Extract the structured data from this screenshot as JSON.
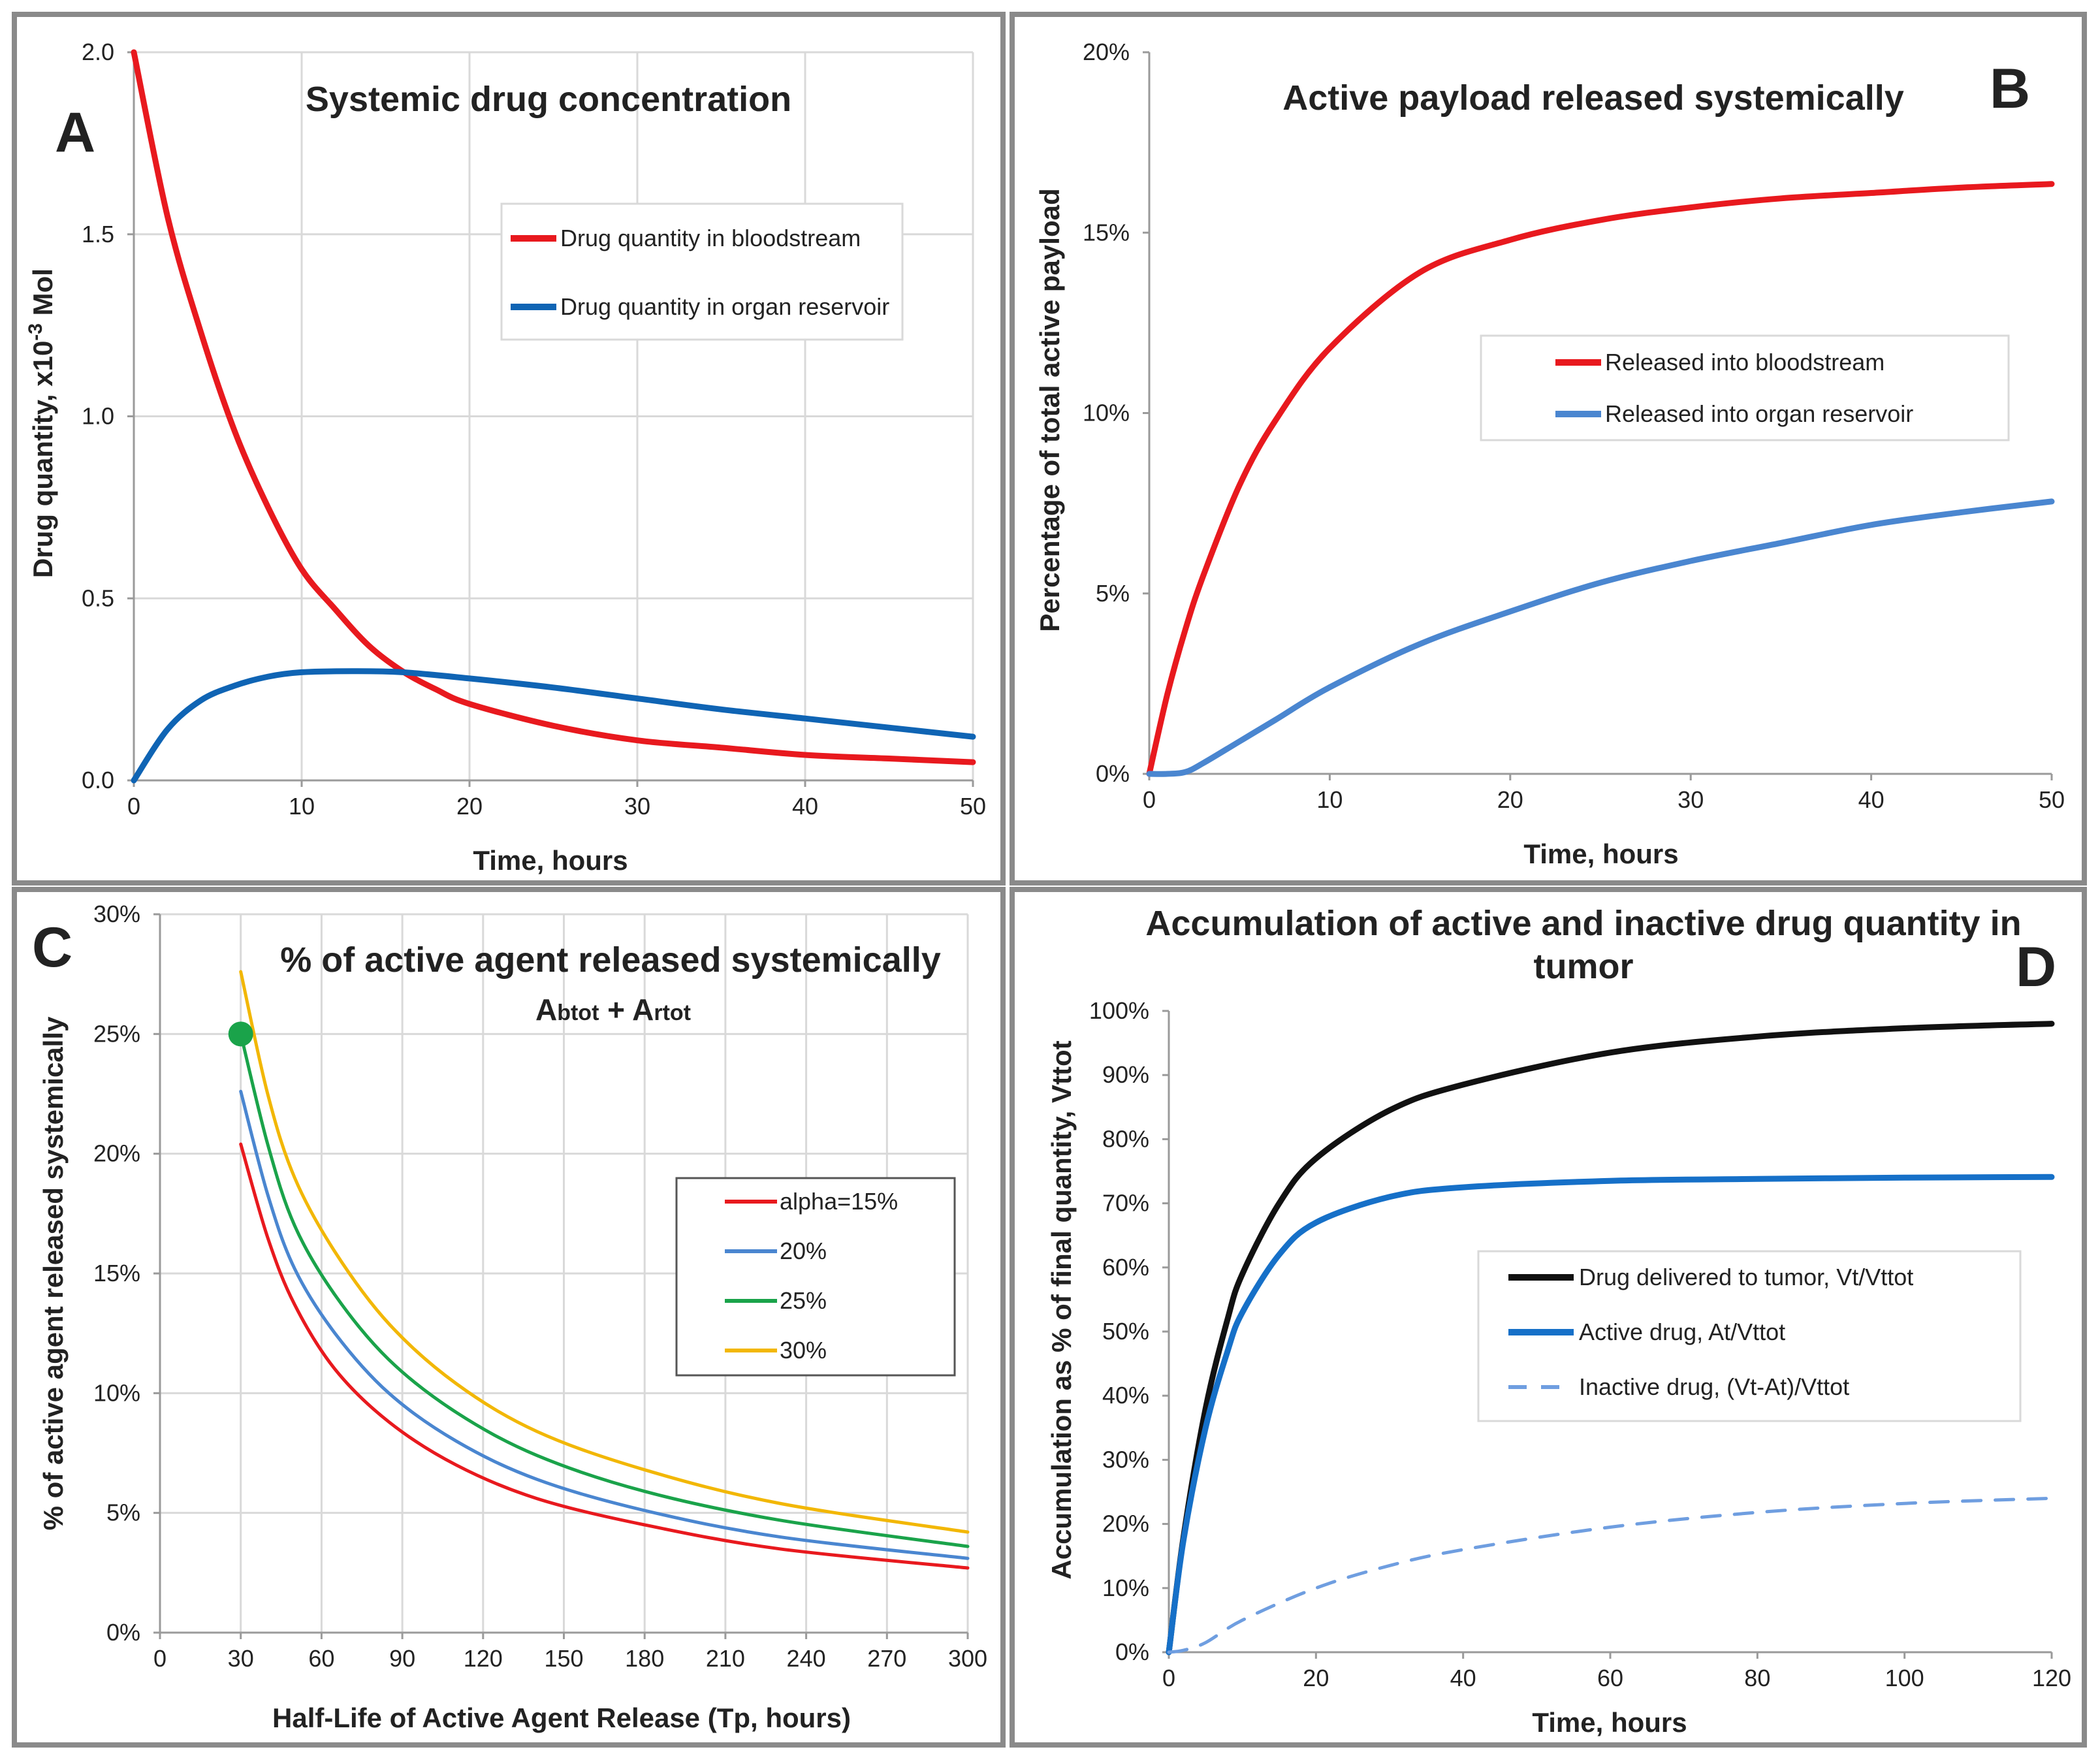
{
  "chart_data": [
    {
      "id": "A",
      "type": "line",
      "panel_label": "A",
      "title": "Systemic drug concentration",
      "xlabel": "Time, hours",
      "ylabel_parts": [
        "Drug quantity, x10",
        "-3",
        " Mol"
      ],
      "xlim": [
        0,
        50
      ],
      "ylim": [
        0,
        2.0
      ],
      "xticks": [
        0,
        10,
        20,
        30,
        40,
        50
      ],
      "xtick_labels": [
        "0",
        "10",
        "20",
        "30",
        "40",
        "50"
      ],
      "yticks": [
        0,
        0.5,
        1.0,
        1.5,
        2.0
      ],
      "ytick_labels": [
        "0.0",
        "0.5",
        "1.0",
        "1.5",
        "2.0"
      ],
      "grid": true,
      "legend_position": "top-right",
      "series": [
        {
          "name": "Drug quantity in bloodstream",
          "color": "#e8191e",
          "dash": "",
          "x": [
            0,
            2,
            4,
            6,
            8,
            10,
            12,
            14,
            16,
            18,
            20,
            25,
            30,
            35,
            40,
            45,
            50
          ],
          "y": [
            2.0,
            1.55,
            1.23,
            0.96,
            0.75,
            0.58,
            0.47,
            0.37,
            0.3,
            0.25,
            0.21,
            0.15,
            0.11,
            0.09,
            0.07,
            0.06,
            0.05
          ]
        },
        {
          "name": "Drug quantity in organ reservoir",
          "color": "#0f64b4",
          "dash": "",
          "x": [
            0,
            2,
            4,
            6,
            8,
            10,
            13,
            16,
            20,
            25,
            30,
            35,
            40,
            45,
            50
          ],
          "y": [
            0,
            0.14,
            0.22,
            0.26,
            0.285,
            0.297,
            0.3,
            0.297,
            0.28,
            0.255,
            0.225,
            0.195,
            0.17,
            0.145,
            0.12
          ]
        }
      ]
    },
    {
      "id": "B",
      "type": "line",
      "panel_label": "B",
      "title": "Active payload released systemically",
      "xlabel": "Time, hours",
      "ylabel": "Percentage of total active payload",
      "xlim": [
        0,
        50
      ],
      "ylim": [
        0,
        20
      ],
      "xticks": [
        0,
        10,
        20,
        30,
        40,
        50
      ],
      "xtick_labels": [
        "0",
        "10",
        "20",
        "30",
        "40",
        "50"
      ],
      "yticks": [
        0,
        5,
        10,
        15,
        20
      ],
      "ytick_labels": [
        "0%",
        "5%",
        "10%",
        "15%",
        "20%"
      ],
      "grid": false,
      "legend_position": "center-right",
      "series": [
        {
          "name": "Released into bloodstream",
          "color": "#e8191e",
          "dash": "",
          "x": [
            0,
            1,
            2,
            3,
            5,
            7,
            10,
            15,
            20,
            25,
            30,
            35,
            40,
            45,
            50
          ],
          "y": [
            0,
            2.2,
            4.0,
            5.5,
            8.0,
            9.8,
            11.8,
            13.9,
            14.8,
            15.35,
            15.7,
            15.95,
            16.1,
            16.25,
            16.35
          ]
        },
        {
          "name": "Released into organ reservoir",
          "color": "#4a86d0",
          "dash": "",
          "x": [
            0,
            1,
            2,
            3,
            5,
            7,
            10,
            15,
            20,
            25,
            30,
            35,
            40,
            45,
            50
          ],
          "y": [
            0,
            0,
            0.05,
            0.3,
            0.9,
            1.5,
            2.4,
            3.6,
            4.5,
            5.3,
            5.9,
            6.4,
            6.9,
            7.25,
            7.55
          ]
        }
      ]
    },
    {
      "id": "C",
      "type": "line",
      "panel_label": "C",
      "title": "% of active agent released systemically",
      "subtitle_parts": [
        {
          "big": "A",
          "small": "btot"
        },
        {
          "big": " + ",
          "small": ""
        },
        {
          "big": "A",
          "small": "rtot"
        }
      ],
      "xlabel": "Half-Life of Active Agent Release (Tp, hours)",
      "ylabel": "% of active agent released systemically",
      "xlim": [
        0,
        300
      ],
      "ylim": [
        0,
        30
      ],
      "xticks": [
        0,
        30,
        60,
        90,
        120,
        150,
        180,
        210,
        240,
        270,
        300
      ],
      "xtick_labels": [
        "0",
        "30",
        "60",
        "90",
        "120",
        "150",
        "180",
        "210",
        "240",
        "270",
        "300"
      ],
      "yticks": [
        0,
        5,
        10,
        15,
        20,
        25,
        30
      ],
      "ytick_labels": [
        "0%",
        "5%",
        "10%",
        "15%",
        "20%",
        "25%",
        "30%"
      ],
      "grid": true,
      "legend_position": "right",
      "marker": {
        "x": 30,
        "y": 25,
        "color": "#1aa34a"
      },
      "series": [
        {
          "name": "alpha=15%",
          "color": "#e8191e",
          "dash": "",
          "x": [
            30,
            40,
            50,
            65,
            85,
            110,
            140,
            180,
            230,
            300
          ],
          "y": [
            20.4,
            16.5,
            13.7,
            11.0,
            8.8,
            7.0,
            5.6,
            4.5,
            3.5,
            2.7
          ]
        },
        {
          "name": "20%",
          "color": "#4a86d0",
          "dash": "",
          "x": [
            30,
            40,
            50,
            65,
            85,
            110,
            140,
            180,
            230,
            300
          ],
          "y": [
            22.6,
            18.3,
            15.2,
            12.5,
            10.0,
            8.0,
            6.4,
            5.1,
            4.0,
            3.1
          ]
        },
        {
          "name": "25%",
          "color": "#1aa34a",
          "dash": "",
          "x": [
            30,
            40,
            50,
            65,
            85,
            110,
            140,
            180,
            230,
            300
          ],
          "y": [
            25.0,
            20.4,
            17.0,
            14.1,
            11.4,
            9.2,
            7.4,
            5.9,
            4.7,
            3.6
          ]
        },
        {
          "name": "30%",
          "color": "#f2b705",
          "dash": "",
          "x": [
            30,
            40,
            50,
            65,
            85,
            110,
            140,
            180,
            230,
            300
          ],
          "y": [
            27.6,
            22.5,
            19.0,
            15.9,
            12.9,
            10.4,
            8.4,
            6.8,
            5.4,
            4.2
          ]
        }
      ]
    },
    {
      "id": "D",
      "type": "line",
      "panel_label": "D",
      "title_lines": [
        "Accumulation of active and inactive drug quantity in",
        "tumor"
      ],
      "xlabel": "Time, hours",
      "ylabel": "Accumulation as % of final quantity, Vttot",
      "xlim": [
        0,
        120
      ],
      "ylim": [
        0,
        100
      ],
      "xticks": [
        0,
        20,
        40,
        60,
        80,
        100,
        120
      ],
      "xtick_labels": [
        "0",
        "20",
        "40",
        "60",
        "80",
        "100",
        "120"
      ],
      "yticks": [
        0,
        10,
        20,
        30,
        40,
        50,
        60,
        70,
        80,
        90,
        100
      ],
      "ytick_labels": [
        "0%",
        "10%",
        "20%",
        "30%",
        "40%",
        "50%",
        "60%",
        "70%",
        "80%",
        "90%",
        "100%"
      ],
      "grid": false,
      "legend_position": "center-right",
      "series": [
        {
          "name": "Drug delivered to tumor, Vt/Vttot",
          "color": "#111111",
          "dash": "",
          "x": [
            0,
            2,
            5,
            8,
            10,
            15,
            20,
            30,
            40,
            60,
            80,
            100,
            120
          ],
          "y": [
            0,
            18,
            38,
            52,
            59,
            70,
            77,
            84.5,
            88.5,
            93.5,
            96,
            97.3,
            98
          ]
        },
        {
          "name": "Active drug, At/Vttot",
          "color": "#1670c8",
          "dash": "",
          "x": [
            0,
            2,
            5,
            8,
            10,
            15,
            20,
            30,
            40,
            60,
            80,
            100,
            120
          ],
          "y": [
            0,
            17.5,
            35,
            47,
            53,
            62,
            67,
            71,
            72.5,
            73.5,
            73.8,
            74,
            74.1
          ]
        },
        {
          "name": "Inactive drug, (Vt-At)/Vttot",
          "color": "#6f9ee0",
          "dash": "28 22",
          "x": [
            0,
            2,
            5,
            10,
            20,
            30,
            40,
            60,
            80,
            100,
            120
          ],
          "y": [
            0,
            0.3,
            1.5,
            5,
            10,
            13.5,
            16,
            19.5,
            21.8,
            23.2,
            24
          ]
        }
      ]
    }
  ]
}
